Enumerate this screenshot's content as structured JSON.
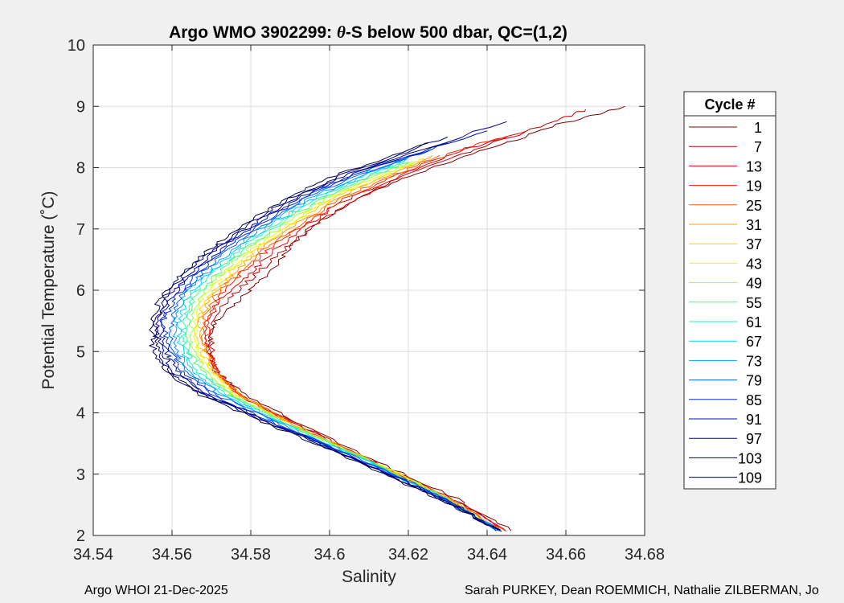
{
  "chart_data": {
    "type": "line",
    "title_prefix": "Argo WMO 3902299: ",
    "title_theta": "θ",
    "title_suffix": "-S below 500 dbar,  QC=(1,2)",
    "xlabel": "Salinity",
    "ylabel": "Potential Temperature (˚C)",
    "xlim": [
      34.54,
      34.68
    ],
    "ylim": [
      2,
      10
    ],
    "xticks": [
      34.54,
      34.56,
      34.58,
      34.6,
      34.62,
      34.64,
      34.66,
      34.68
    ],
    "xtick_labels": [
      "34.54",
      "34.56",
      "34.58",
      "34.6",
      "34.62",
      "34.64",
      "34.66",
      "34.68"
    ],
    "yticks": [
      2,
      3,
      4,
      5,
      6,
      7,
      8,
      9,
      10
    ],
    "ytick_labels": [
      "2",
      "3",
      "4",
      "5",
      "6",
      "7",
      "8",
      "9",
      "10"
    ],
    "grid": true,
    "legend": {
      "title": "Cycle #",
      "placement": "outside-right",
      "entries": [
        "1",
        "7",
        "13",
        "19",
        "25",
        "31",
        "37",
        "43",
        "49",
        "55",
        "61",
        "67",
        "73",
        "79",
        "85",
        "91",
        "97",
        "103",
        "109"
      ],
      "colors": [
        "#800000",
        "#c00000",
        "#e00000",
        "#ff2000",
        "#ff6000",
        "#ffa000",
        "#ffd000",
        "#e8ff00",
        "#a0ff30",
        "#40ff80",
        "#20f0c0",
        "#00d0ff",
        "#00a0ff",
        "#0060ff",
        "#0030e0",
        "#0010b0",
        "#000090",
        "#000070",
        "#000050"
      ]
    },
    "series": [
      {
        "name": "1",
        "color": "#800000",
        "theta": [
          2.08,
          2.6,
          3.2,
          3.8,
          4.3,
          4.7,
          5.1,
          5.5,
          5.9,
          6.3,
          6.7,
          7.1,
          7.5,
          7.9,
          8.3,
          8.7,
          9.0
        ],
        "salinity": [
          34.646,
          34.632,
          34.612,
          34.593,
          34.578,
          34.571,
          34.569,
          34.571,
          34.578,
          34.585,
          34.59,
          34.597,
          34.607,
          34.622,
          34.64,
          34.658,
          34.675
        ]
      },
      {
        "name": "7",
        "color": "#c00000",
        "theta": [
          2.08,
          2.6,
          3.2,
          3.8,
          4.3,
          4.7,
          5.1,
          5.5,
          5.9,
          6.3,
          6.7,
          7.1,
          7.5,
          7.9,
          8.3,
          8.7,
          8.95
        ],
        "salinity": [
          34.645,
          34.631,
          34.611,
          34.592,
          34.577,
          34.571,
          34.57,
          34.57,
          34.575,
          34.582,
          34.589,
          34.597,
          34.607,
          34.62,
          34.637,
          34.655,
          34.665
        ]
      },
      {
        "name": "13",
        "color": "#e00000",
        "theta": [
          2.08,
          2.6,
          3.2,
          3.8,
          4.3,
          4.7,
          5.1,
          5.5,
          5.9,
          6.3,
          6.7,
          7.1,
          7.5,
          7.9,
          8.3,
          8.6
        ],
        "salinity": [
          34.645,
          34.631,
          34.611,
          34.592,
          34.577,
          34.571,
          34.569,
          34.569,
          34.573,
          34.58,
          34.587,
          34.595,
          34.605,
          34.619,
          34.635,
          34.65
        ]
      },
      {
        "name": "19",
        "color": "#ff2000",
        "theta": [
          2.08,
          2.6,
          3.2,
          3.8,
          4.3,
          4.7,
          5.1,
          5.5,
          5.9,
          6.3,
          6.7,
          7.1,
          7.5,
          7.9,
          8.3,
          8.5
        ],
        "salinity": [
          34.644,
          34.63,
          34.611,
          34.591,
          34.577,
          34.571,
          34.569,
          34.569,
          34.572,
          34.578,
          34.585,
          34.594,
          34.604,
          34.618,
          34.633,
          34.645
        ]
      },
      {
        "name": "25",
        "color": "#ff6000",
        "theta": [
          2.08,
          2.6,
          3.2,
          3.8,
          4.3,
          4.7,
          5.1,
          5.5,
          5.9,
          6.3,
          6.7,
          7.1,
          7.5,
          7.9,
          8.2
        ],
        "salinity": [
          34.644,
          34.63,
          34.611,
          34.591,
          34.577,
          34.571,
          34.568,
          34.568,
          34.571,
          34.577,
          34.584,
          34.593,
          34.603,
          34.617,
          34.628
        ]
      },
      {
        "name": "31",
        "color": "#ffa000",
        "theta": [
          2.08,
          2.6,
          3.2,
          3.8,
          4.3,
          4.7,
          5.1,
          5.5,
          5.9,
          6.3,
          6.7,
          7.1,
          7.5,
          7.9,
          8.2
        ],
        "salinity": [
          34.643,
          34.63,
          34.611,
          34.591,
          34.577,
          34.57,
          34.568,
          34.567,
          34.57,
          34.576,
          34.583,
          34.592,
          34.602,
          34.616,
          34.626
        ]
      },
      {
        "name": "37",
        "color": "#ffd000",
        "theta": [
          2.08,
          2.6,
          3.2,
          3.8,
          4.3,
          4.7,
          5.1,
          5.5,
          5.9,
          6.3,
          6.7,
          7.1,
          7.5,
          7.9,
          8.15
        ],
        "salinity": [
          34.643,
          34.63,
          34.611,
          34.591,
          34.576,
          34.57,
          34.567,
          34.566,
          34.569,
          34.575,
          34.582,
          34.591,
          34.601,
          34.615,
          34.624
        ]
      },
      {
        "name": "43",
        "color": "#e8ff00",
        "theta": [
          2.08,
          2.6,
          3.2,
          3.8,
          4.3,
          4.7,
          5.1,
          5.5,
          5.9,
          6.3,
          6.7,
          7.1,
          7.5,
          7.9,
          8.1
        ],
        "salinity": [
          34.643,
          34.63,
          34.611,
          34.59,
          34.576,
          34.569,
          34.566,
          34.566,
          34.568,
          34.574,
          34.581,
          34.59,
          34.6,
          34.614,
          34.622
        ]
      },
      {
        "name": "49",
        "color": "#a0ff30",
        "theta": [
          2.08,
          2.6,
          3.2,
          3.8,
          4.3,
          4.7,
          5.1,
          5.5,
          5.9,
          6.3,
          6.7,
          7.1,
          7.5,
          7.9,
          8.1
        ],
        "salinity": [
          34.643,
          34.63,
          34.611,
          34.59,
          34.575,
          34.568,
          34.565,
          34.565,
          34.567,
          34.573,
          34.58,
          34.589,
          34.599,
          34.613,
          34.621
        ]
      },
      {
        "name": "55",
        "color": "#40ff80",
        "theta": [
          2.08,
          2.6,
          3.2,
          3.8,
          4.3,
          4.7,
          5.1,
          5.5,
          5.9,
          6.3,
          6.7,
          7.1,
          7.5,
          7.9,
          8.1
        ],
        "salinity": [
          34.643,
          34.629,
          34.61,
          34.59,
          34.575,
          34.567,
          34.564,
          34.564,
          34.566,
          34.572,
          34.579,
          34.588,
          34.598,
          34.612,
          34.62
        ]
      },
      {
        "name": "61",
        "color": "#20f0c0",
        "theta": [
          2.08,
          2.6,
          3.2,
          3.8,
          4.3,
          4.7,
          5.1,
          5.5,
          5.9,
          6.3,
          6.7,
          7.1,
          7.5,
          7.9,
          8.1
        ],
        "salinity": [
          34.643,
          34.629,
          34.61,
          34.589,
          34.574,
          34.566,
          34.563,
          34.563,
          34.565,
          34.571,
          34.578,
          34.587,
          34.597,
          34.611,
          34.619
        ]
      },
      {
        "name": "67",
        "color": "#00d0ff",
        "theta": [
          2.08,
          2.6,
          3.2,
          3.8,
          4.3,
          4.7,
          5.1,
          5.5,
          5.9,
          6.3,
          6.7,
          7.1,
          7.5,
          7.9,
          8.15
        ],
        "salinity": [
          34.643,
          34.629,
          34.61,
          34.589,
          34.573,
          34.565,
          34.562,
          34.562,
          34.564,
          34.57,
          34.577,
          34.586,
          34.596,
          34.61,
          34.62
        ]
      },
      {
        "name": "73",
        "color": "#00a0ff",
        "theta": [
          2.08,
          2.6,
          3.2,
          3.8,
          4.3,
          4.7,
          5.1,
          5.5,
          5.9,
          6.3,
          6.7,
          7.1,
          7.5,
          7.9,
          8.2
        ],
        "salinity": [
          34.643,
          34.629,
          34.609,
          34.588,
          34.572,
          34.564,
          34.561,
          34.561,
          34.563,
          34.569,
          34.576,
          34.585,
          34.595,
          34.609,
          34.621
        ]
      },
      {
        "name": "79",
        "color": "#0060ff",
        "theta": [
          2.08,
          2.6,
          3.2,
          3.8,
          4.3,
          4.7,
          5.1,
          5.5,
          5.9,
          6.3,
          6.7,
          7.1,
          7.5,
          7.9,
          8.3
        ],
        "salinity": [
          34.643,
          34.629,
          34.609,
          34.588,
          34.571,
          34.563,
          34.56,
          34.56,
          34.562,
          34.568,
          34.575,
          34.584,
          34.594,
          34.608,
          34.626
        ]
      },
      {
        "name": "85",
        "color": "#0030e0",
        "theta": [
          2.08,
          2.6,
          3.2,
          3.8,
          4.3,
          4.7,
          5.1,
          5.5,
          5.9,
          6.3,
          6.7,
          7.1,
          7.5,
          7.9,
          8.4
        ],
        "salinity": [
          34.643,
          34.629,
          34.609,
          34.587,
          34.57,
          34.562,
          34.559,
          34.558,
          34.561,
          34.567,
          34.574,
          34.583,
          34.593,
          34.607,
          34.63
        ]
      },
      {
        "name": "91",
        "color": "#0010b0",
        "theta": [
          2.08,
          2.6,
          3.2,
          3.8,
          4.3,
          4.7,
          5.1,
          5.5,
          5.9,
          6.3,
          6.7,
          7.1,
          7.5,
          7.9,
          8.6
        ],
        "salinity": [
          34.643,
          34.629,
          34.608,
          34.587,
          34.569,
          34.561,
          34.558,
          34.557,
          34.56,
          34.566,
          34.573,
          34.582,
          34.592,
          34.606,
          34.64
        ]
      },
      {
        "name": "97",
        "color": "#000090",
        "theta": [
          2.08,
          2.6,
          3.2,
          3.8,
          4.3,
          4.7,
          5.1,
          5.5,
          5.9,
          6.3,
          6.7,
          7.1,
          7.5,
          7.9,
          8.75
        ],
        "salinity": [
          34.643,
          34.628,
          34.608,
          34.586,
          34.568,
          34.56,
          34.557,
          34.556,
          34.559,
          34.565,
          34.572,
          34.581,
          34.591,
          34.605,
          34.645
        ]
      },
      {
        "name": "103",
        "color": "#000070",
        "theta": [
          2.08,
          2.6,
          3.2,
          3.8,
          4.3,
          4.7,
          5.1,
          5.5,
          5.9,
          6.3,
          6.7,
          7.1,
          7.5,
          7.9,
          8.5
        ],
        "salinity": [
          34.643,
          34.628,
          34.608,
          34.586,
          34.568,
          34.559,
          34.556,
          34.556,
          34.558,
          34.564,
          34.571,
          34.58,
          34.59,
          34.604,
          34.63
        ]
      },
      {
        "name": "109",
        "color": "#000050",
        "theta": [
          2.08,
          2.6,
          3.2,
          3.8,
          4.3,
          4.7,
          5.1,
          5.5,
          5.9,
          6.3,
          6.7,
          7.1,
          7.5,
          7.9,
          8.4
        ],
        "salinity": [
          34.643,
          34.628,
          34.607,
          34.585,
          34.567,
          34.558,
          34.555,
          34.555,
          34.557,
          34.563,
          34.57,
          34.579,
          34.589,
          34.603,
          34.625
        ]
      }
    ]
  },
  "footer": {
    "left": "Argo WHOI 21-Dec-2025",
    "right": "Sarah PURKEY, Dean ROEMMICH, Nathalie ZILBERMAN, Jo"
  }
}
